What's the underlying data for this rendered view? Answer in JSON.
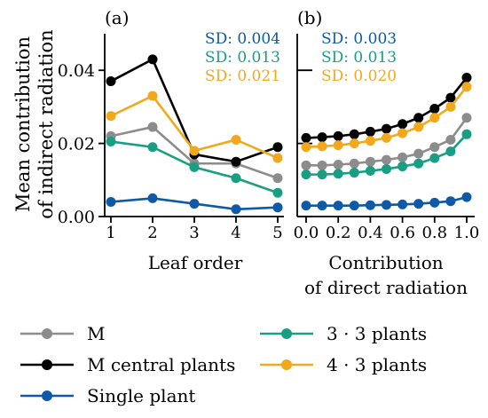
{
  "chart_data": [
    {
      "type": "line",
      "panel_label": "(a)",
      "title": "",
      "xlabel": "Leaf order",
      "ylabel": [
        "Mean contribution",
        "of indirect radiation"
      ],
      "xlim": [
        1,
        5
      ],
      "ylim": [
        0,
        0.05
      ],
      "xticks": [
        "1",
        "2",
        "3",
        "4",
        "5"
      ],
      "yticks": [
        "0.00",
        "0.02",
        "0.04"
      ],
      "x": [
        1,
        2,
        3,
        4,
        5
      ],
      "series": [
        {
          "name": "M",
          "color": "#8c8c8c",
          "values": [
            0.022,
            0.0245,
            0.0145,
            0.0145,
            0.0105
          ]
        },
        {
          "name": "M central plants",
          "color": "#000000",
          "values": [
            0.037,
            0.043,
            0.017,
            0.015,
            0.019
          ]
        },
        {
          "name": "Single plant",
          "color": "#0e5aa7",
          "values": [
            0.004,
            0.005,
            0.0035,
            0.002,
            0.0025
          ]
        },
        {
          "name": "3 · 3 plants",
          "color": "#1a9e83",
          "values": [
            0.0205,
            0.019,
            0.0135,
            0.0105,
            0.0065
          ]
        },
        {
          "name": "4 · 3 plants",
          "color": "#f2a81d",
          "values": [
            0.0275,
            0.033,
            0.018,
            0.021,
            0.016
          ]
        }
      ],
      "annotations": [
        {
          "text": "SD: 0.004",
          "color": "#0e5aa7"
        },
        {
          "text": "SD: 0.013",
          "color": "#1a9e83"
        },
        {
          "text": "SD: 0.021",
          "color": "#f2a81d"
        }
      ],
      "grid": false
    },
    {
      "type": "line",
      "panel_label": "(b)",
      "title": "",
      "xlabel": [
        "Contribution",
        "of direct radiation"
      ],
      "ylabel": "",
      "xlim": [
        0,
        1
      ],
      "ylim": [
        0,
        0.05
      ],
      "xticks": [
        "0.0",
        "0.2",
        "0.4",
        "0.6",
        "0.8",
        "1.0"
      ],
      "x": [
        0.0,
        0.1,
        0.2,
        0.3,
        0.4,
        0.5,
        0.6,
        0.7,
        0.8,
        0.9,
        1.0
      ],
      "series": [
        {
          "name": "M",
          "color": "#8c8c8c",
          "values": [
            0.014,
            0.014,
            0.0142,
            0.0145,
            0.015,
            0.0155,
            0.0162,
            0.0172,
            0.019,
            0.021,
            0.027
          ]
        },
        {
          "name": "M central plants",
          "color": "#000000",
          "values": [
            0.0215,
            0.0217,
            0.022,
            0.0225,
            0.0232,
            0.024,
            0.0253,
            0.027,
            0.0295,
            0.0325,
            0.038
          ]
        },
        {
          "name": "Single plant",
          "color": "#0e5aa7",
          "values": [
            0.003,
            0.003,
            0.003,
            0.003,
            0.0031,
            0.0032,
            0.0033,
            0.0035,
            0.0038,
            0.0042,
            0.0053
          ]
        },
        {
          "name": "3 · 3 plants",
          "color": "#1a9e83",
          "values": [
            0.0115,
            0.0115,
            0.0117,
            0.012,
            0.0125,
            0.013,
            0.0137,
            0.0145,
            0.016,
            0.0178,
            0.0225
          ]
        },
        {
          "name": "4 · 3 plants",
          "color": "#f2a81d",
          "values": [
            0.019,
            0.0192,
            0.0195,
            0.02,
            0.0207,
            0.0215,
            0.0228,
            0.0245,
            0.027,
            0.03,
            0.0355
          ]
        }
      ],
      "annotations": [
        {
          "text": "SD: 0.003",
          "color": "#0e5aa7"
        },
        {
          "text": "SD: 0.013",
          "color": "#1a9e83"
        },
        {
          "text": "SD: 0.020",
          "color": "#f2a81d"
        }
      ],
      "grid": false
    }
  ],
  "legend": [
    {
      "label": "M",
      "color": "#8c8c8c"
    },
    {
      "label": "3 · 3 plants",
      "color": "#1a9e83"
    },
    {
      "label": "M central plants",
      "color": "#000000"
    },
    {
      "label": "4 · 3 plants",
      "color": "#f2a81d"
    },
    {
      "label": "Single plant",
      "color": "#0e5aa7"
    }
  ]
}
